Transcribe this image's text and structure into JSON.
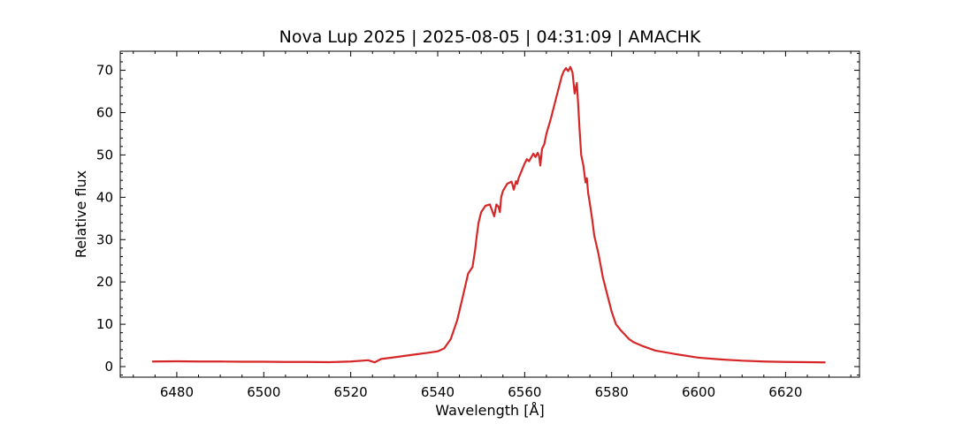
{
  "chart_data": {
    "type": "line",
    "title": "Nova Lup 2025 | 2025-08-05 | 04:31:09 | AMACHK",
    "xlabel": "Wavelength [Å]",
    "ylabel": "Relative flux",
    "xlim": [
      6467,
      6637
    ],
    "ylim": [
      -2.5,
      74.5
    ],
    "x_ticks": [
      6480,
      6500,
      6520,
      6540,
      6560,
      6580,
      6600,
      6620
    ],
    "y_ticks": [
      0,
      10,
      20,
      30,
      40,
      50,
      60,
      70
    ],
    "grid": false,
    "legend": "none",
    "line_color": "#d62728",
    "series": [
      {
        "x": [
          6474.5,
          6480,
          6485,
          6490,
          6495,
          6500,
          6505,
          6510,
          6515,
          6520,
          6524,
          6525.5,
          6527,
          6530,
          6535,
          6538,
          6540,
          6541.5,
          6543,
          6544.5,
          6546,
          6547,
          6548,
          6548.6,
          6549,
          6549.4,
          6550,
          6551,
          6552,
          6553,
          6553.5,
          6554,
          6554.3,
          6554.6,
          6555,
          6556,
          6557,
          6557.5,
          6558,
          6558.3,
          6558.6,
          6559,
          6560,
          6560.5,
          6561,
          6562,
          6562.5,
          6563,
          6563.3,
          6563.6,
          6564,
          6564.5,
          6565,
          6566,
          6567,
          6568,
          6568.5,
          6569,
          6569.5,
          6570,
          6570.5,
          6571,
          6571.5,
          6572,
          6572.3,
          6572.6,
          6573,
          6573.5,
          6574,
          6574.3,
          6574.6,
          6575,
          6575.5,
          6576,
          6577,
          6578,
          6579,
          6580,
          6581,
          6582,
          6583,
          6584,
          6585,
          6587,
          6590,
          6595,
          6600,
          6605,
          6610,
          6615,
          6620,
          6625,
          6629
        ],
        "y": [
          1.2,
          1.25,
          1.2,
          1.2,
          1.15,
          1.15,
          1.1,
          1.1,
          1.05,
          1.2,
          1.5,
          1.0,
          1.8,
          2.2,
          2.9,
          3.3,
          3.6,
          4.3,
          6.5,
          11.0,
          17.5,
          22.0,
          23.5,
          27.5,
          31.0,
          34.0,
          36.5,
          38.0,
          38.3,
          35.5,
          38.3,
          37.7,
          36.5,
          40.0,
          41.5,
          43.2,
          43.7,
          41.8,
          43.8,
          43.2,
          44.5,
          45.5,
          48.0,
          49.0,
          48.5,
          50.3,
          49.5,
          50.5,
          49.8,
          47.5,
          51.5,
          52.5,
          55.0,
          58.5,
          62.5,
          66.5,
          68.5,
          69.8,
          70.5,
          69.8,
          70.8,
          69.5,
          64.5,
          67.0,
          62.0,
          56.5,
          50.0,
          47.5,
          43.5,
          44.5,
          41.0,
          38.5,
          35.0,
          31.0,
          26.5,
          21.0,
          17.0,
          13.0,
          10.0,
          8.7,
          7.6,
          6.5,
          5.8,
          4.9,
          3.8,
          2.9,
          2.1,
          1.7,
          1.4,
          1.2,
          1.1,
          1.05,
          1.0
        ]
      }
    ]
  }
}
